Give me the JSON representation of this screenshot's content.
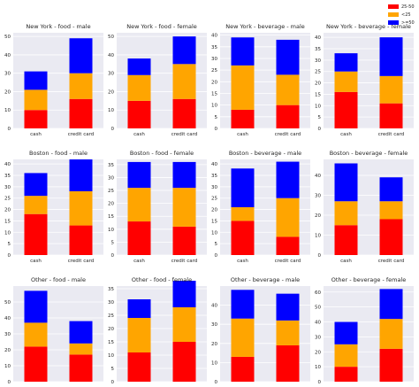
{
  "legend": {
    "position": "top-right",
    "items": [
      {
        "label": "25-50",
        "color": "#ff0000"
      },
      {
        "label": "<25",
        "color": "#ffa500"
      },
      {
        "label": ">=50",
        "color": "#0000ff"
      }
    ]
  },
  "chart_data": [
    {
      "type": "bar",
      "title": "New York - food - male",
      "categories": [
        "cash",
        "credit card"
      ],
      "ylim": [
        0,
        52
      ],
      "yticks": [
        0,
        10,
        20,
        30,
        40,
        50
      ],
      "stacked": true,
      "series": [
        {
          "name": "25-50",
          "values": [
            10,
            16
          ]
        },
        {
          "name": "<25",
          "values": [
            11,
            14
          ]
        },
        {
          "name": ">=50",
          "values": [
            10,
            19
          ]
        }
      ]
    },
    {
      "type": "bar",
      "title": "New York - food - female",
      "categories": [
        "cash",
        "credit card"
      ],
      "ylim": [
        0,
        52
      ],
      "yticks": [
        0,
        10,
        20,
        30,
        40,
        50
      ],
      "stacked": true,
      "series": [
        {
          "name": "25-50",
          "values": [
            15,
            16
          ]
        },
        {
          "name": "<25",
          "values": [
            14,
            19
          ]
        },
        {
          "name": ">=50",
          "values": [
            9,
            15
          ]
        }
      ]
    },
    {
      "type": "bar",
      "title": "New York - beverage - male",
      "categories": [
        "cash",
        "credit card"
      ],
      "ylim": [
        0,
        41
      ],
      "yticks": [
        0,
        5,
        10,
        15,
        20,
        25,
        30,
        35,
        40
      ],
      "stacked": true,
      "series": [
        {
          "name": "25-50",
          "values": [
            8,
            10
          ]
        },
        {
          "name": "<25",
          "values": [
            19,
            13
          ]
        },
        {
          "name": ">=50",
          "values": [
            12,
            15
          ]
        }
      ]
    },
    {
      "type": "bar",
      "title": "New York - beverage - female",
      "categories": [
        "cash",
        "credit card"
      ],
      "ylim": [
        0,
        42
      ],
      "yticks": [
        0,
        5,
        10,
        15,
        20,
        25,
        30,
        35,
        40
      ],
      "stacked": true,
      "series": [
        {
          "name": "25-50",
          "values": [
            16,
            11
          ]
        },
        {
          "name": "<25",
          "values": [
            9,
            12
          ]
        },
        {
          "name": ">=50",
          "values": [
            8,
            17
          ]
        }
      ]
    },
    {
      "type": "bar",
      "title": "Boston - food - male",
      "categories": [
        "cash",
        "credit card"
      ],
      "ylim": [
        0,
        42
      ],
      "yticks": [
        0,
        5,
        10,
        15,
        20,
        25,
        30,
        35,
        40
      ],
      "stacked": true,
      "series": [
        {
          "name": "25-50",
          "values": [
            18,
            13
          ]
        },
        {
          "name": "<25",
          "values": [
            8,
            15
          ]
        },
        {
          "name": ">=50",
          "values": [
            10,
            14
          ]
        }
      ]
    },
    {
      "type": "bar",
      "title": "Boston - food - female",
      "categories": [
        "cash",
        "credit card"
      ],
      "ylim": [
        0,
        37
      ],
      "yticks": [
        0,
        5,
        10,
        15,
        20,
        25,
        30,
        35
      ],
      "stacked": true,
      "series": [
        {
          "name": "25-50",
          "values": [
            13,
            11
          ]
        },
        {
          "name": "<25",
          "values": [
            13,
            15
          ]
        },
        {
          "name": ">=50",
          "values": [
            10,
            10
          ]
        }
      ]
    },
    {
      "type": "bar",
      "title": "Boston - beverage - male",
      "categories": [
        "cash",
        "credit card"
      ],
      "ylim": [
        0,
        42
      ],
      "yticks": [
        0,
        5,
        10,
        15,
        20,
        25,
        30,
        35,
        40
      ],
      "stacked": true,
      "series": [
        {
          "name": "25-50",
          "values": [
            15,
            8
          ]
        },
        {
          "name": "<25",
          "values": [
            6,
            17
          ]
        },
        {
          "name": ">=50",
          "values": [
            17,
            16
          ]
        }
      ]
    },
    {
      "type": "bar",
      "title": "Boston - beverage - female",
      "categories": [
        "cash",
        "credit card"
      ],
      "ylim": [
        0,
        48
      ],
      "yticks": [
        0,
        10,
        20,
        30,
        40
      ],
      "stacked": true,
      "series": [
        {
          "name": "25-50",
          "values": [
            15,
            18
          ]
        },
        {
          "name": "<25",
          "values": [
            12,
            9
          ]
        },
        {
          "name": ">=50",
          "values": [
            19,
            12
          ]
        }
      ]
    },
    {
      "type": "bar",
      "title": "Other - food - male",
      "categories": [
        "cash",
        "credit card"
      ],
      "ylim": [
        0,
        60
      ],
      "yticks": [
        0,
        10,
        20,
        30,
        40,
        50
      ],
      "stacked": true,
      "series": [
        {
          "name": "25-50",
          "values": [
            22,
            17
          ]
        },
        {
          "name": "<25",
          "values": [
            15,
            7
          ]
        },
        {
          "name": ">=50",
          "values": [
            20,
            14
          ]
        }
      ]
    },
    {
      "type": "bar",
      "title": "Other - food - female",
      "categories": [
        "cash",
        "credit card"
      ],
      "ylim": [
        0,
        36
      ],
      "yticks": [
        0,
        5,
        10,
        15,
        20,
        25,
        30,
        35
      ],
      "stacked": true,
      "series": [
        {
          "name": "25-50",
          "values": [
            11,
            15
          ]
        },
        {
          "name": "<25",
          "values": [
            13,
            13
          ]
        },
        {
          "name": ">=50",
          "values": [
            7,
            10
          ]
        }
      ]
    },
    {
      "type": "bar",
      "title": "Other - beverage - male",
      "categories": [
        "cash",
        "credit card"
      ],
      "ylim": [
        0,
        50
      ],
      "yticks": [
        0,
        10,
        20,
        30,
        40
      ],
      "stacked": true,
      "series": [
        {
          "name": "25-50",
          "values": [
            13,
            19
          ]
        },
        {
          "name": "<25",
          "values": [
            20,
            13
          ]
        },
        {
          "name": ">=50",
          "values": [
            15,
            14
          ]
        }
      ]
    },
    {
      "type": "bar",
      "title": "Other - beverage - female",
      "categories": [
        "cash",
        "credit card"
      ],
      "ylim": [
        0,
        64
      ],
      "yticks": [
        0,
        10,
        20,
        30,
        40,
        50,
        60
      ],
      "stacked": true,
      "series": [
        {
          "name": "25-50",
          "values": [
            10,
            22
          ]
        },
        {
          "name": "<25",
          "values": [
            15,
            20
          ]
        },
        {
          "name": ">=50",
          "values": [
            15,
            20
          ]
        }
      ]
    }
  ]
}
